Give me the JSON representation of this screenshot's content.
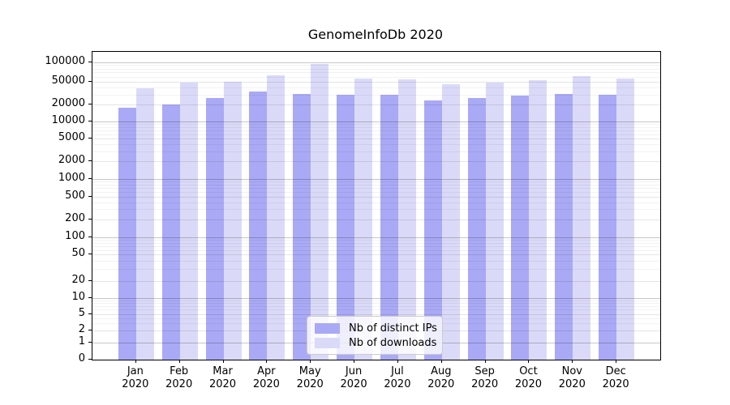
{
  "title": "GenomeInfoDb 2020",
  "legend": {
    "items": [
      {
        "label": "Nb of distinct IPs",
        "color": "#a9a9f5"
      },
      {
        "label": "Nb of downloads",
        "color": "#dadaf8"
      }
    ]
  },
  "axis": {
    "year": "2020",
    "months": [
      "Jan",
      "Feb",
      "Mar",
      "Apr",
      "May",
      "Jun",
      "Jul",
      "Aug",
      "Sep",
      "Oct",
      "Nov",
      "Dec"
    ],
    "y_tick_values": [
      0,
      1,
      2,
      5,
      10,
      20,
      50,
      100,
      200,
      500,
      1000,
      2000,
      5000,
      10000,
      20000,
      50000,
      100000
    ]
  },
  "colors": {
    "distinct_ips": "#a9a9f5",
    "downloads": "#dadaf8",
    "grid_major": "rgba(0,0,0,0.22)",
    "grid_labeled": "rgba(0,0,0,0.10)",
    "grid_minor": "rgba(0,0,0,0.05)"
  },
  "chart_data": {
    "type": "bar",
    "categories": [
      "Jan 2020",
      "Feb 2020",
      "Mar 2020",
      "Apr 2020",
      "May 2020",
      "Jun 2020",
      "Jul 2020",
      "Aug 2020",
      "Sep 2020",
      "Oct 2020",
      "Nov 2020",
      "Dec 2020"
    ],
    "series": [
      {
        "name": "Nb of distinct IPs",
        "values": [
          18000,
          20000,
          26000,
          34000,
          31000,
          30000,
          29500,
          24000,
          26000,
          29000,
          30500,
          30000
        ]
      },
      {
        "name": "Nb of downloads",
        "values": [
          38000,
          49000,
          50000,
          62000,
          95000,
          56000,
          55000,
          46000,
          49000,
          53000,
          61000,
          56000
        ]
      }
    ],
    "title": "GenomeInfoDb 2020",
    "xlabel": "",
    "ylabel": "",
    "yscale": "symlog (0 at baseline, log above 1)",
    "y_ticks": [
      0,
      1,
      2,
      5,
      10,
      20,
      50,
      100,
      200,
      500,
      1000,
      2000,
      5000,
      10000,
      20000,
      50000,
      100000
    ],
    "ylim": [
      0,
      140000
    ],
    "grid": true,
    "legend_position": "lower center"
  }
}
